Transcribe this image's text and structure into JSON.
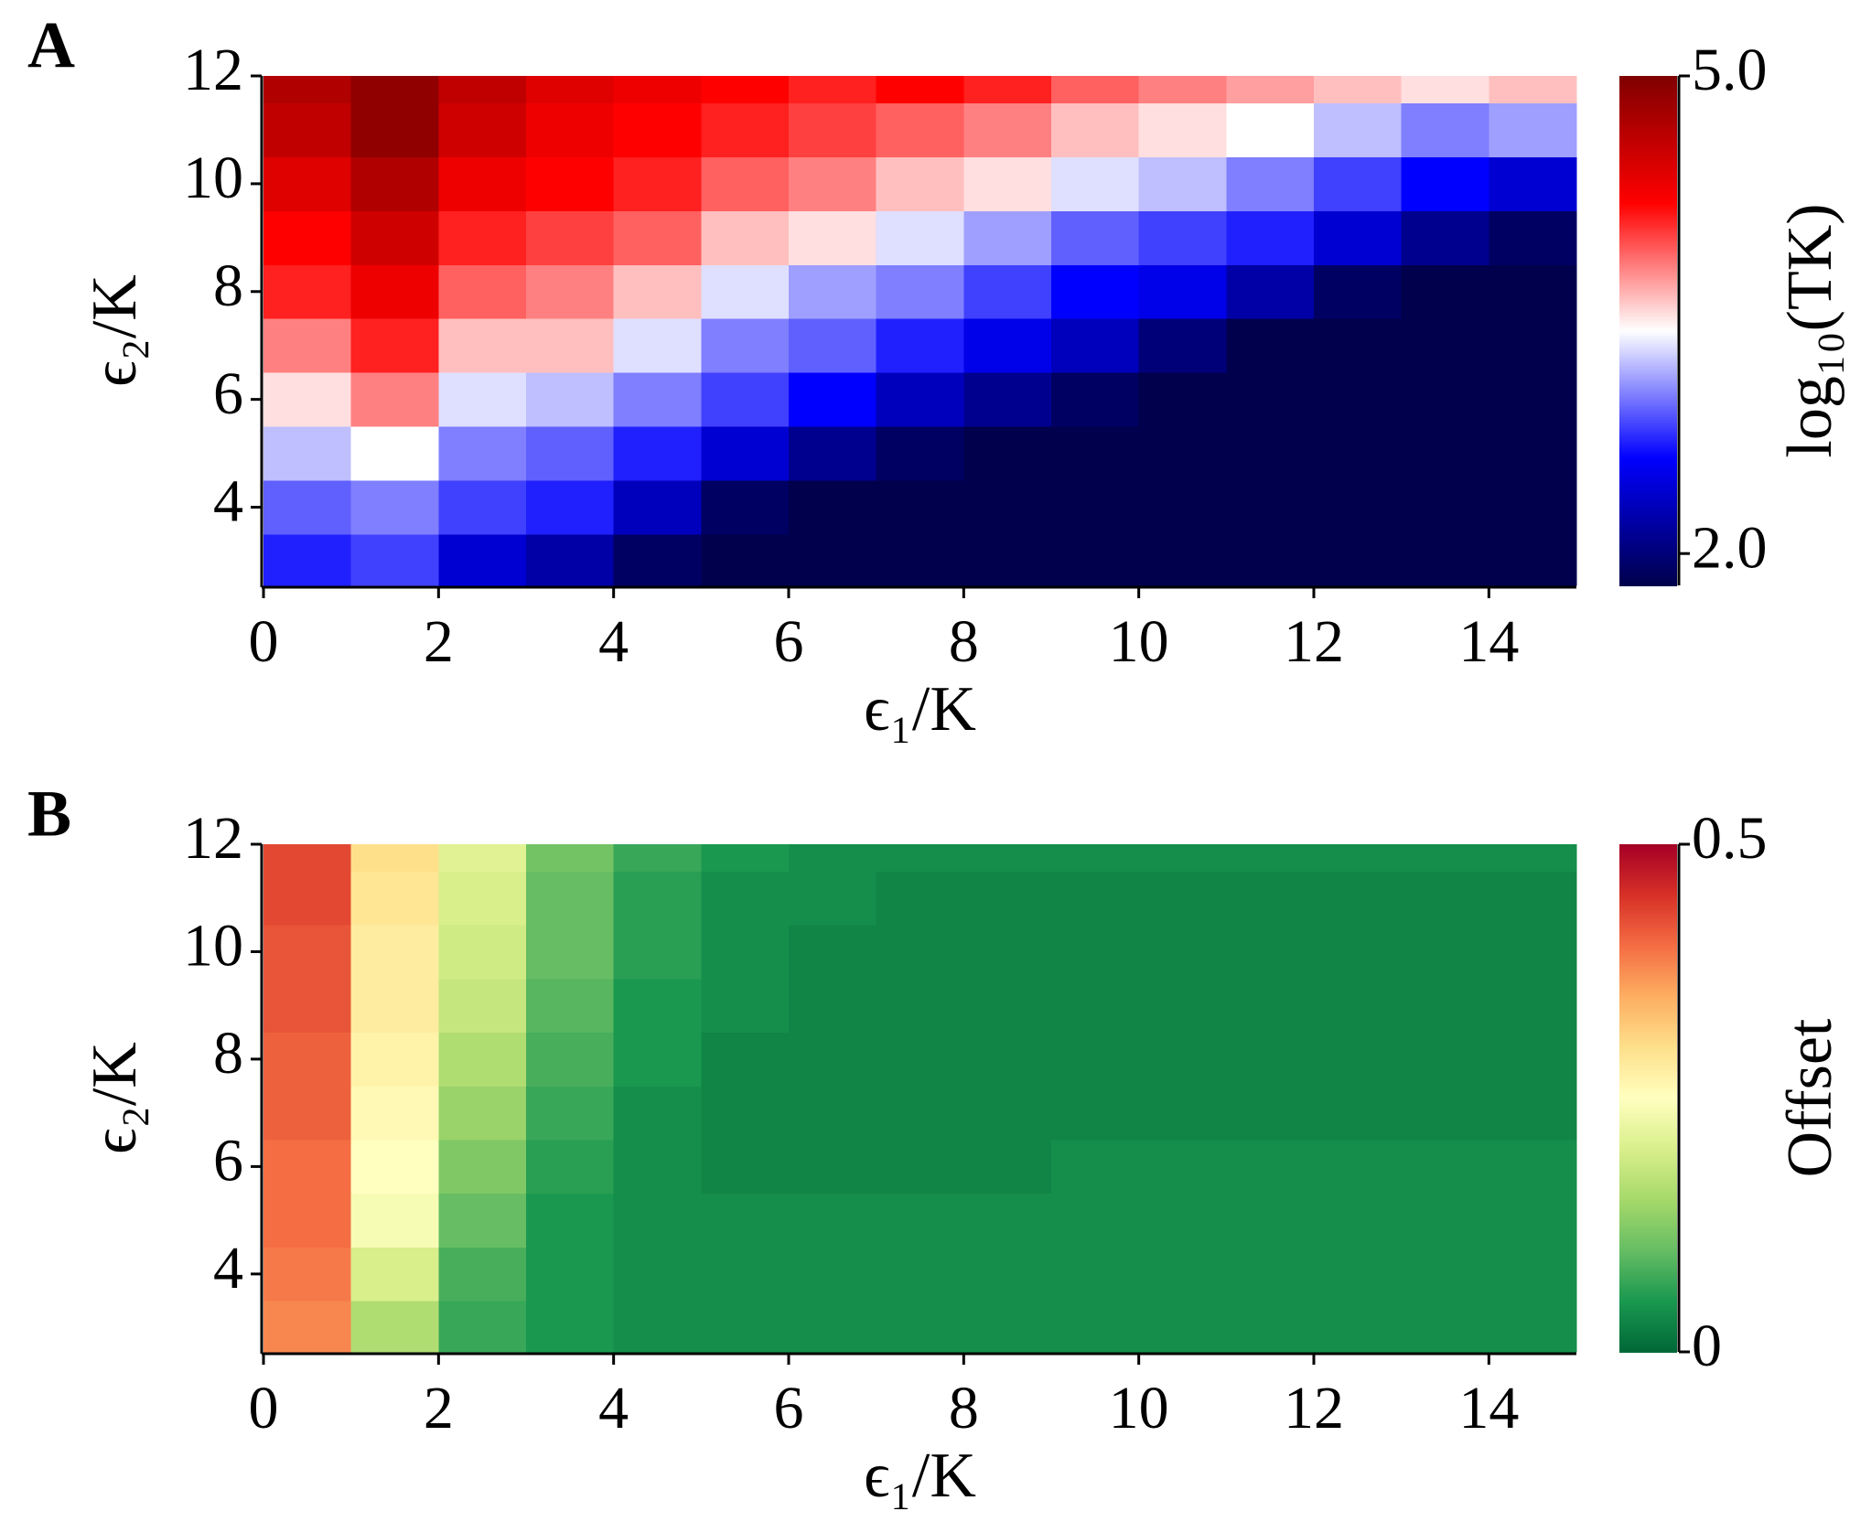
{
  "chart_data": [
    {
      "type": "heatmap",
      "panel_label": "A",
      "x_label": "ϵ₁/K",
      "y_label": "ϵ₂/K",
      "x": [
        0.5,
        1.5,
        2.5,
        3.5,
        4.5,
        5.5,
        6.5,
        7.5,
        8.5,
        9.5,
        10.5,
        11.5,
        12.5,
        13.5,
        14.5
      ],
      "y": [
        3,
        4,
        5,
        6,
        7,
        8,
        9,
        10,
        11,
        12
      ],
      "z": [
        [
          2.7,
          2.8,
          2.4,
          2.2,
          1.9,
          1.8,
          1.8,
          1.8,
          1.8,
          1.8,
          1.8,
          1.8,
          1.8,
          1.8,
          1.8
        ],
        [
          2.9,
          3.0,
          2.8,
          2.7,
          2.3,
          1.9,
          1.8,
          1.8,
          1.8,
          1.8,
          1.8,
          1.8,
          1.8,
          1.8,
          1.8
        ],
        [
          3.2,
          3.4,
          3.0,
          2.9,
          2.7,
          2.4,
          2.1,
          1.9,
          1.8,
          1.8,
          1.8,
          1.8,
          1.8,
          1.8,
          1.8
        ],
        [
          3.5,
          3.8,
          3.3,
          3.2,
          3.0,
          2.8,
          2.6,
          2.3,
          2.1,
          1.9,
          1.8,
          1.8,
          1.8,
          1.8,
          1.8
        ],
        [
          3.8,
          4.1,
          3.6,
          3.6,
          3.3,
          3.0,
          2.9,
          2.7,
          2.5,
          2.3,
          2.0,
          1.8,
          1.8,
          1.8,
          1.8
        ],
        [
          4.1,
          4.3,
          3.9,
          3.8,
          3.6,
          3.3,
          3.1,
          3.0,
          2.8,
          2.6,
          2.5,
          2.2,
          1.9,
          1.8,
          1.8
        ],
        [
          4.2,
          4.5,
          4.1,
          4.0,
          3.9,
          3.6,
          3.5,
          3.3,
          3.1,
          2.9,
          2.8,
          2.7,
          2.4,
          2.1,
          1.9
        ],
        [
          4.4,
          4.7,
          4.3,
          4.2,
          4.1,
          3.9,
          3.8,
          3.6,
          3.5,
          3.3,
          3.2,
          3.0,
          2.8,
          2.6,
          2.4
        ],
        [
          4.6,
          4.9,
          4.5,
          4.3,
          4.2,
          4.1,
          4.0,
          3.9,
          3.8,
          3.6,
          3.5,
          3.4,
          3.2,
          3.0,
          3.1
        ],
        [
          4.7,
          4.9,
          4.6,
          4.4,
          4.3,
          4.2,
          4.1,
          4.2,
          4.1,
          3.9,
          3.8,
          3.7,
          3.6,
          3.5,
          3.6
        ]
      ],
      "xlim": [
        0,
        15
      ],
      "ylim": [
        2.55,
        12
      ],
      "xticks": [
        0,
        2,
        4,
        6,
        8,
        10,
        12,
        14
      ],
      "yticks": [
        4,
        6,
        8,
        10,
        12
      ],
      "colorbar": {
        "label": "log₁₀(TK)",
        "zlim": [
          1.8,
          5.0
        ],
        "ticks": [
          {
            "value": 5,
            "label": "5.0"
          },
          {
            "value": 2,
            "label": "2.0"
          }
        ],
        "colormap": [
          "#00004c",
          "#0000ff",
          "#ffffff",
          "#ff0000",
          "#800000"
        ]
      }
    },
    {
      "type": "heatmap",
      "panel_label": "B",
      "x_label": "ϵ₁/K",
      "y_label": "ϵ₂/K",
      "x": [
        0.5,
        1.5,
        2.5,
        3.5,
        4.5,
        5.5,
        6.5,
        7.5,
        8.5,
        9.5,
        10.5,
        11.5,
        12.5,
        13.5,
        14.5
      ],
      "y": [
        3,
        4,
        5,
        6,
        7,
        8,
        9,
        10,
        11,
        12
      ],
      "z": [
        [
          0.38,
          0.16,
          0.07,
          0.05,
          0.04,
          0.04,
          0.04,
          0.04,
          0.04,
          0.04,
          0.04,
          0.04,
          0.04,
          0.04,
          0.04
        ],
        [
          0.39,
          0.2,
          0.08,
          0.05,
          0.04,
          0.04,
          0.04,
          0.04,
          0.04,
          0.04,
          0.04,
          0.04,
          0.04,
          0.04,
          0.04
        ],
        [
          0.4,
          0.24,
          0.1,
          0.05,
          0.04,
          0.04,
          0.04,
          0.04,
          0.04,
          0.04,
          0.04,
          0.04,
          0.04,
          0.04,
          0.04
        ],
        [
          0.4,
          0.25,
          0.12,
          0.06,
          0.04,
          0.03,
          0.03,
          0.03,
          0.03,
          0.04,
          0.04,
          0.04,
          0.04,
          0.04,
          0.04
        ],
        [
          0.41,
          0.26,
          0.14,
          0.07,
          0.04,
          0.03,
          0.03,
          0.03,
          0.03,
          0.03,
          0.03,
          0.03,
          0.03,
          0.03,
          0.03
        ],
        [
          0.41,
          0.27,
          0.16,
          0.08,
          0.05,
          0.03,
          0.03,
          0.03,
          0.03,
          0.03,
          0.03,
          0.03,
          0.03,
          0.03,
          0.03
        ],
        [
          0.42,
          0.28,
          0.18,
          0.09,
          0.05,
          0.04,
          0.03,
          0.03,
          0.03,
          0.03,
          0.03,
          0.03,
          0.03,
          0.03,
          0.03
        ],
        [
          0.42,
          0.28,
          0.19,
          0.1,
          0.06,
          0.04,
          0.03,
          0.03,
          0.03,
          0.03,
          0.03,
          0.03,
          0.03,
          0.03,
          0.03
        ],
        [
          0.43,
          0.29,
          0.2,
          0.1,
          0.06,
          0.04,
          0.04,
          0.03,
          0.03,
          0.03,
          0.03,
          0.03,
          0.03,
          0.03,
          0.03
        ],
        [
          0.43,
          0.3,
          0.21,
          0.11,
          0.07,
          0.05,
          0.04,
          0.04,
          0.04,
          0.04,
          0.04,
          0.04,
          0.04,
          0.04,
          0.04
        ]
      ],
      "xlim": [
        0,
        15
      ],
      "ylim": [
        2.55,
        12
      ],
      "xticks": [
        0,
        2,
        4,
        6,
        8,
        10,
        12,
        14
      ],
      "yticks": [
        4,
        6,
        8,
        10,
        12
      ],
      "colorbar": {
        "label": "Offset",
        "zlim": [
          0,
          0.5
        ],
        "ticks": [
          0.5,
          0
        ],
        "colormap": [
          "#006837",
          "#1a9850",
          "#66bd63",
          "#a6d96a",
          "#d9ef8b",
          "#ffffbf",
          "#fee08b",
          "#fdae61",
          "#f46d43",
          "#d73027",
          "#a50026"
        ]
      }
    }
  ]
}
